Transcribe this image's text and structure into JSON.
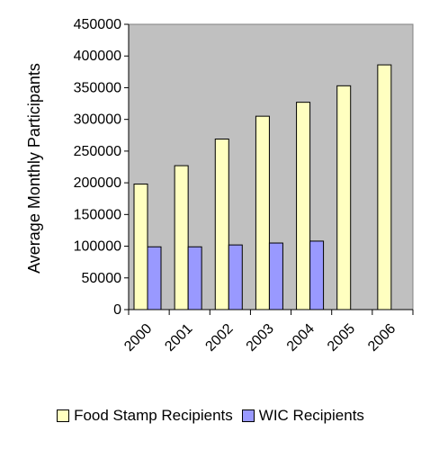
{
  "colors": {
    "plot_background": "#c0c0c0",
    "food_stamp": "#ffffc0",
    "wic": "#9999ff"
  },
  "chart_data": {
    "type": "bar",
    "ylabel": "Average Monthly Participants",
    "ylim": [
      0,
      450000
    ],
    "yticks": [
      0,
      50000,
      100000,
      150000,
      200000,
      250000,
      300000,
      350000,
      400000,
      450000
    ],
    "categories": [
      "2000",
      "2001",
      "2002",
      "2003",
      "2004",
      "2005",
      "2006"
    ],
    "grid": false,
    "legend_position": "bottom",
    "series": [
      {
        "name": "Food Stamp Recipients",
        "color": "#ffffc0",
        "values": [
          198000,
          227000,
          269000,
          305000,
          327000,
          353000,
          386000
        ]
      },
      {
        "name": "WIC Recipients",
        "color": "#9999ff",
        "values": [
          99000,
          99000,
          102000,
          105000,
          108000,
          null,
          null
        ]
      }
    ]
  }
}
